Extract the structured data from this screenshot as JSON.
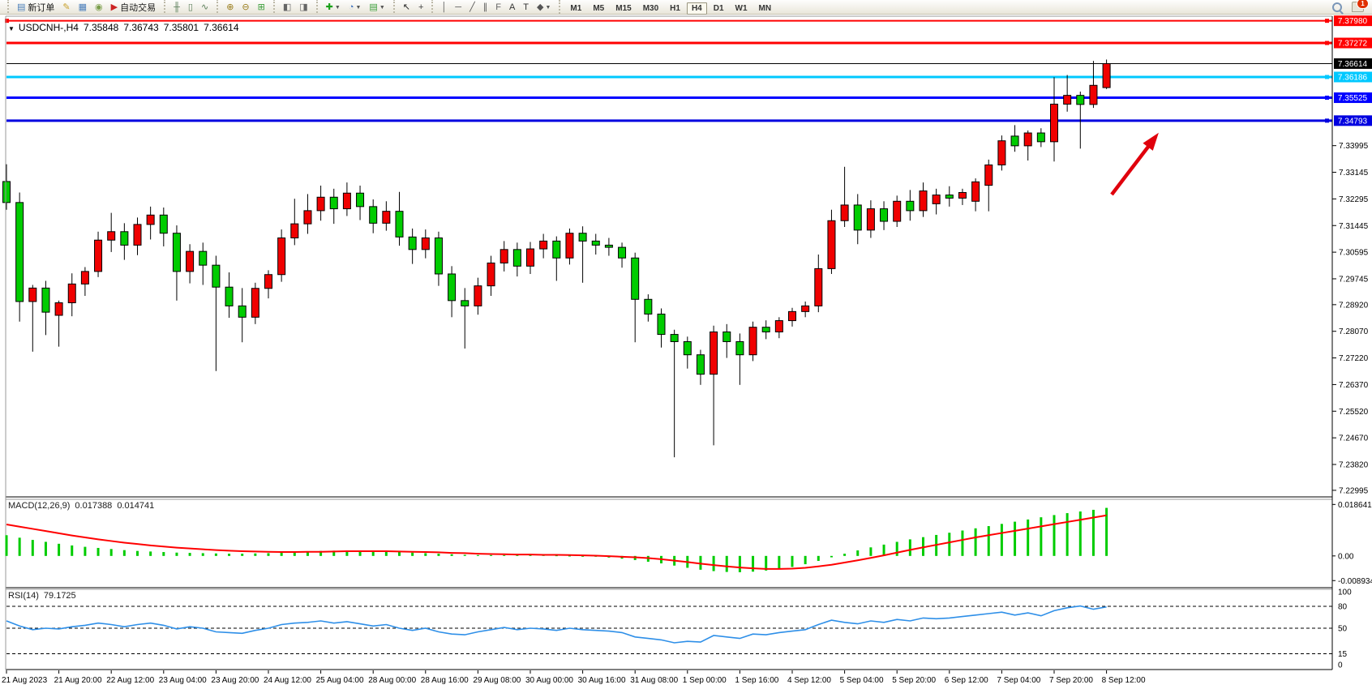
{
  "toolbar": {
    "groups": [
      {
        "name": "trade",
        "items": [
          {
            "name": "new-order",
            "glyph": "▤",
            "color": "#4a7ebb",
            "label": "新订单"
          },
          {
            "name": "styler",
            "glyph": "✎",
            "color": "#C8A12C"
          },
          {
            "name": "data-window",
            "glyph": "▦",
            "color": "#4a7ebb"
          },
          {
            "name": "signals",
            "glyph": "◉",
            "color": "#7a9e4a"
          },
          {
            "name": "autotrading",
            "glyph": "▶",
            "color": "#cc2222",
            "label": "自动交易"
          }
        ]
      },
      {
        "name": "chart-type",
        "items": [
          {
            "name": "chart-bars",
            "glyph": "╫",
            "color": "#5a7e5a"
          },
          {
            "name": "chart-candles",
            "glyph": "▯",
            "color": "#5a7e5a"
          },
          {
            "name": "chart-line",
            "glyph": "∿",
            "color": "#5a7e5a"
          }
        ]
      },
      {
        "name": "zoom",
        "items": [
          {
            "name": "zoom-in",
            "glyph": "⊕",
            "color": "#9a7d1c"
          },
          {
            "name": "zoom-out",
            "glyph": "⊖",
            "color": "#9a7d1c"
          },
          {
            "name": "tile-windows",
            "glyph": "⊞",
            "color": "#3a9e3a"
          }
        ]
      },
      {
        "name": "scroll",
        "items": [
          {
            "name": "auto-scroll",
            "glyph": "◧",
            "color": "#666666"
          },
          {
            "name": "chart-shift",
            "glyph": "◨",
            "color": "#666666"
          }
        ]
      },
      {
        "name": "insert",
        "items": [
          {
            "name": "indicators",
            "glyph": "✚",
            "color": "#18a018",
            "dropdown": true
          },
          {
            "name": "periods",
            "glyph": "◔",
            "color": "#3a6ebb",
            "dropdown": true
          },
          {
            "name": "templates",
            "glyph": "▤",
            "color": "#3a9e3a",
            "dropdown": true
          }
        ]
      },
      {
        "name": "cursor",
        "items": [
          {
            "name": "cursor",
            "glyph": "↖",
            "color": "#222222"
          },
          {
            "name": "crosshair",
            "glyph": "+",
            "color": "#444444"
          }
        ]
      },
      {
        "name": "objects",
        "items": [
          {
            "name": "vertical-line",
            "glyph": "│",
            "color": "#555555"
          },
          {
            "name": "horizontal-line",
            "glyph": "─",
            "color": "#555555"
          },
          {
            "name": "trendline",
            "glyph": "╱",
            "color": "#555555"
          },
          {
            "name": "equidistant-channel",
            "glyph": "∥",
            "color": "#555555"
          },
          {
            "name": "fibonacci",
            "glyph": "F",
            "color": "#666666"
          },
          {
            "name": "text",
            "glyph": "A",
            "color": "#333333"
          },
          {
            "name": "text-label",
            "glyph": "T",
            "color": "#333333"
          },
          {
            "name": "arrows",
            "glyph": "◆",
            "color": "#555555",
            "dropdown": true
          }
        ]
      }
    ],
    "timeframes": [
      "M1",
      "M5",
      "M15",
      "M30",
      "H1",
      "H4",
      "D1",
      "W1",
      "MN"
    ],
    "active_timeframe": "H4",
    "notification_badge": "1"
  },
  "chart": {
    "dropdown_glyph": "▼",
    "title": "USDCNH-,H4",
    "ohlc": {
      "open": "7.35848",
      "high": "7.36743",
      "low": "7.35801",
      "close": "7.36614"
    }
  },
  "price_axis": {
    "ticks": [
      "7.33995",
      "7.33145",
      "7.32295",
      "7.31445",
      "7.30595",
      "7.29745",
      "7.28920",
      "7.28070",
      "7.27220",
      "7.26370",
      "7.25520",
      "7.24670",
      "7.23820",
      "7.22995"
    ]
  },
  "lines": {
    "horizontal": [
      {
        "name": "resistance-line-1",
        "price": 7.3798,
        "label": "7.37980",
        "color": "#FF0000",
        "width": 2,
        "left_handle": true
      },
      {
        "name": "resistance-line-2",
        "price": 7.37272,
        "label": "7.37272",
        "color": "#FF0000",
        "width": 3
      },
      {
        "name": "cyan-level-line",
        "price": 7.36186,
        "label": "7.36186",
        "color": "#00C8FF",
        "width": 3
      },
      {
        "name": "support-line-1",
        "price": 7.35525,
        "label": "7.35525",
        "color": "#0000FF",
        "width": 3
      },
      {
        "name": "support-line-2",
        "price": 7.34793,
        "label": "7.34793",
        "color": "#0000E0",
        "width": 3
      }
    ],
    "current_price": {
      "value": "7.36614",
      "color": "#000000"
    }
  },
  "macd": {
    "label": "MACD(12,26,9)",
    "value": "0.017388",
    "signal_value": "0.014741",
    "axis_ticks": [
      "0.018641",
      "0.00",
      "-0.008934"
    ]
  },
  "rsi": {
    "label": "RSI(14)",
    "value": "79.1725",
    "axis_ticks": [
      "100",
      "80",
      "50",
      "15",
      "0"
    ],
    "levels": [
      80,
      50,
      15
    ]
  },
  "time_axis": {
    "labels": [
      "21 Aug 2023",
      "21 Aug 20:00",
      "22 Aug 12:00",
      "23 Aug 04:00",
      "23 Aug 20:00",
      "24 Aug 12:00",
      "25 Aug 04:00",
      "28 Aug 00:00",
      "28 Aug 16:00",
      "29 Aug 08:00",
      "30 Aug 00:00",
      "30 Aug 16:00",
      "31 Aug 08:00",
      "1 Sep 00:00",
      "1 Sep 16:00",
      "4 Sep 12:00",
      "5 Sep 04:00",
      "5 Sep 20:00",
      "6 Sep 12:00",
      "7 Sep 04:00",
      "7 Sep 20:00",
      "8 Sep 12:00"
    ]
  },
  "annotation": {
    "arrow_color": "#E0000C"
  },
  "chart_data": {
    "type": "candlestick",
    "symbol": "USDCNH",
    "timeframe": "H4",
    "up_color": "#F00000",
    "down_color": "#00CC00",
    "wick_color": "#000000",
    "y_range": [
      7.22785,
      7.38126
    ],
    "candles": [
      [
        7.3285,
        7.334,
        7.3195,
        7.3218
      ],
      [
        7.3218,
        7.325,
        7.2838,
        7.2902
      ],
      [
        7.2902,
        7.2955,
        7.2742,
        7.2945
      ],
      [
        7.2945,
        7.2968,
        7.2795,
        7.2868
      ],
      [
        7.2858,
        7.2905,
        7.2758,
        7.2898
      ],
      [
        7.2898,
        7.2992,
        7.2855,
        7.2958
      ],
      [
        7.2958,
        7.3012,
        7.292,
        7.2998
      ],
      [
        7.2998,
        7.3125,
        7.298,
        7.3098
      ],
      [
        7.3098,
        7.3185,
        7.306,
        7.3125
      ],
      [
        7.3125,
        7.3152,
        7.3035,
        7.3082
      ],
      [
        7.3082,
        7.317,
        7.305,
        7.3148
      ],
      [
        7.3148,
        7.3205,
        7.31,
        7.3178
      ],
      [
        7.3178,
        7.3202,
        7.3078,
        7.312
      ],
      [
        7.312,
        7.3145,
        7.2905,
        7.2998
      ],
      [
        7.2998,
        7.3085,
        7.296,
        7.3062
      ],
      [
        7.3062,
        7.309,
        7.2955,
        7.3018
      ],
      [
        7.3018,
        7.3048,
        7.268,
        7.2948
      ],
      [
        7.2948,
        7.2995,
        7.285,
        7.2888
      ],
      [
        7.2888,
        7.2945,
        7.2772,
        7.2852
      ],
      [
        7.2852,
        7.2962,
        7.283,
        7.2944
      ],
      [
        7.2944,
        7.3002,
        7.2912,
        7.2988
      ],
      [
        7.2988,
        7.3132,
        7.2965,
        7.3105
      ],
      [
        7.3105,
        7.323,
        7.3082,
        7.315
      ],
      [
        7.315,
        7.3245,
        7.3118,
        7.3192
      ],
      [
        7.3192,
        7.3272,
        7.316,
        7.3235
      ],
      [
        7.3235,
        7.3262,
        7.315,
        7.3198
      ],
      [
        7.3198,
        7.3282,
        7.3175,
        7.3248
      ],
      [
        7.3248,
        7.3272,
        7.3162,
        7.3205
      ],
      [
        7.3205,
        7.3228,
        7.312,
        7.3152
      ],
      [
        7.3152,
        7.3222,
        7.3128,
        7.319
      ],
      [
        7.319,
        7.3252,
        7.308,
        7.3108
      ],
      [
        7.3108,
        7.3135,
        7.3022,
        7.3068
      ],
      [
        7.3068,
        7.3132,
        7.304,
        7.3105
      ],
      [
        7.3105,
        7.3125,
        7.2952,
        7.299
      ],
      [
        7.299,
        7.3015,
        7.2852,
        7.2905
      ],
      [
        7.2905,
        7.2945,
        7.2752,
        7.2888
      ],
      [
        7.2888,
        7.2978,
        7.286,
        7.2952
      ],
      [
        7.2952,
        7.3048,
        7.292,
        7.3025
      ],
      [
        7.3025,
        7.3095,
        7.2998,
        7.3068
      ],
      [
        7.3068,
        7.309,
        7.2982,
        7.3015
      ],
      [
        7.3015,
        7.3092,
        7.299,
        7.307
      ],
      [
        7.307,
        7.3118,
        7.304,
        7.3095
      ],
      [
        7.3095,
        7.311,
        7.2968,
        7.3041
      ],
      [
        7.3041,
        7.3135,
        7.302,
        7.312
      ],
      [
        7.312,
        7.3142,
        7.2962,
        7.3095
      ],
      [
        7.3095,
        7.3118,
        7.3052,
        7.3082
      ],
      [
        7.3082,
        7.3105,
        7.3048,
        7.3075
      ],
      [
        7.3075,
        7.309,
        7.301,
        7.3041
      ],
      [
        7.3041,
        7.3058,
        7.2772,
        7.2909
      ],
      [
        7.2909,
        7.2925,
        7.2838,
        7.2862
      ],
      [
        7.2862,
        7.288,
        7.2755,
        7.2797
      ],
      [
        7.2797,
        7.2812,
        7.2405,
        7.2774
      ],
      [
        7.2774,
        7.279,
        7.2688,
        7.2732
      ],
      [
        7.2732,
        7.2748,
        7.2636,
        7.267
      ],
      [
        7.267,
        7.2825,
        7.2443,
        7.2805
      ],
      [
        7.2805,
        7.283,
        7.2722,
        7.2774
      ],
      [
        7.2774,
        7.28,
        7.2636,
        7.2732
      ],
      [
        7.2732,
        7.2838,
        7.2712,
        7.282
      ],
      [
        7.282,
        7.2842,
        7.2782,
        7.2805
      ],
      [
        7.2805,
        7.2852,
        7.2785,
        7.2841
      ],
      [
        7.2841,
        7.2882,
        7.2822,
        7.287
      ],
      [
        7.287,
        7.2902,
        7.2852,
        7.2888
      ],
      [
        7.2888,
        7.3052,
        7.2868,
        7.3007
      ],
      [
        7.3007,
        7.3195,
        7.299,
        7.316
      ],
      [
        7.316,
        7.3332,
        7.314,
        7.321
      ],
      [
        7.321,
        7.3245,
        7.3085,
        7.313
      ],
      [
        7.313,
        7.3225,
        7.3105,
        7.3198
      ],
      [
        7.3198,
        7.3222,
        7.313,
        7.3158
      ],
      [
        7.3158,
        7.324,
        7.314,
        7.3222
      ],
      [
        7.3222,
        7.3258,
        7.316,
        7.3192
      ],
      [
        7.3192,
        7.3282,
        7.3172,
        7.3255
      ],
      [
        7.3214,
        7.3262,
        7.318,
        7.3242
      ],
      [
        7.3242,
        7.327,
        7.3205,
        7.3232
      ],
      [
        7.3232,
        7.3262,
        7.321,
        7.325
      ],
      [
        7.3222,
        7.3295,
        7.319,
        7.3284
      ],
      [
        7.3273,
        7.3355,
        7.319,
        7.3338
      ],
      [
        7.3338,
        7.3432,
        7.332,
        7.3415
      ],
      [
        7.343,
        7.3465,
        7.338,
        7.3399
      ],
      [
        7.3399,
        7.3448,
        7.3352,
        7.344
      ],
      [
        7.344,
        7.3455,
        7.3395,
        7.3412
      ],
      [
        7.3412,
        7.3618,
        7.3349,
        7.3532
      ],
      [
        7.3532,
        7.3625,
        7.3508,
        7.356
      ],
      [
        7.356,
        7.3572,
        7.339,
        7.3531
      ],
      [
        7.3531,
        7.367,
        7.352,
        7.3592
      ],
      [
        7.35848,
        7.36743,
        7.35801,
        7.36614
      ]
    ],
    "macd": {
      "range": [
        -0.0115,
        0.0205
      ],
      "bar_color": "#00CC00",
      "signal_color": "#FF0000",
      "histogram": [
        0.0075,
        0.0066,
        0.0058,
        0.0051,
        0.0044,
        0.0038,
        0.0033,
        0.0029,
        0.0025,
        0.0021,
        0.0018,
        0.0016,
        0.0014,
        0.0012,
        0.0011,
        0.001,
        0.0009,
        0.0008,
        0.0008,
        0.0009,
        0.001,
        0.0012,
        0.0014,
        0.0016,
        0.0018,
        0.0019,
        0.0019,
        0.0018,
        0.0017,
        0.0016,
        0.0014,
        0.0012,
        0.001,
        0.0008,
        0.0006,
        0.0004,
        0.0003,
        0.0003,
        0.0003,
        0.0003,
        0.0003,
        0.0003,
        0.0002,
        0.0001,
        -0.0001,
        -0.0003,
        -0.0006,
        -0.001,
        -0.0015,
        -0.0021,
        -0.0027,
        -0.0035,
        -0.0043,
        -0.005,
        -0.0055,
        -0.0058,
        -0.0059,
        -0.0057,
        -0.0053,
        -0.0047,
        -0.004,
        -0.003,
        -0.0018,
        -0.0005,
        0.0008,
        0.002,
        0.0031,
        0.0041,
        0.0051,
        0.006,
        0.0068,
        0.0076,
        0.0084,
        0.0092,
        0.01,
        0.0108,
        0.0116,
        0.0124,
        0.0132,
        0.014,
        0.0148,
        0.0155,
        0.0161,
        0.0167,
        0.0174
      ],
      "signal": [
        0.0114,
        0.0106,
        0.0098,
        0.009,
        0.0082,
        0.0074,
        0.0067,
        0.006,
        0.0054,
        0.0048,
        0.0043,
        0.0038,
        0.0034,
        0.003,
        0.0027,
        0.0024,
        0.0021,
        0.0019,
        0.0017,
        0.0016,
        0.0015,
        0.0014,
        0.0014,
        0.0015,
        0.0015,
        0.0016,
        0.0017,
        0.0017,
        0.0017,
        0.0017,
        0.0016,
        0.0015,
        0.0014,
        0.0013,
        0.0011,
        0.001,
        0.0008,
        0.0007,
        0.0006,
        0.0005,
        0.0005,
        0.0004,
        0.0004,
        0.0003,
        0.0002,
        0.0001,
        -0.0001,
        -0.0003,
        -0.0005,
        -0.0008,
        -0.0012,
        -0.0017,
        -0.0022,
        -0.0028,
        -0.0033,
        -0.0038,
        -0.0042,
        -0.0045,
        -0.0047,
        -0.0047,
        -0.0046,
        -0.0043,
        -0.0038,
        -0.0032,
        -0.0024,
        -0.0016,
        -0.0007,
        0.0002,
        0.0012,
        0.0022,
        0.0031,
        0.004,
        0.0049,
        0.0058,
        0.0067,
        0.0075,
        0.0083,
        0.0091,
        0.0099,
        0.0107,
        0.0115,
        0.0123,
        0.0131,
        0.0139,
        0.0147
      ]
    },
    "rsi": {
      "range": [
        0,
        100
      ],
      "color": "#2E8FE8",
      "values": [
        60,
        53,
        48,
        50,
        49,
        52,
        54,
        57,
        55,
        52,
        55,
        57,
        54,
        49,
        52,
        50,
        45,
        44,
        43,
        47,
        50,
        55,
        57,
        58,
        60,
        57,
        59,
        56,
        53,
        55,
        50,
        47,
        50,
        45,
        42,
        41,
        45,
        48,
        51,
        48,
        50,
        49,
        47,
        50,
        48,
        47,
        46,
        44,
        38,
        36,
        34,
        30,
        32,
        31,
        40,
        38,
        36,
        42,
        41,
        44,
        46,
        48,
        55,
        61,
        58,
        56,
        60,
        58,
        62,
        60,
        64,
        63,
        64,
        66,
        68,
        70,
        72,
        68,
        71,
        67,
        74,
        78,
        80.5,
        76,
        79.17
      ]
    }
  }
}
